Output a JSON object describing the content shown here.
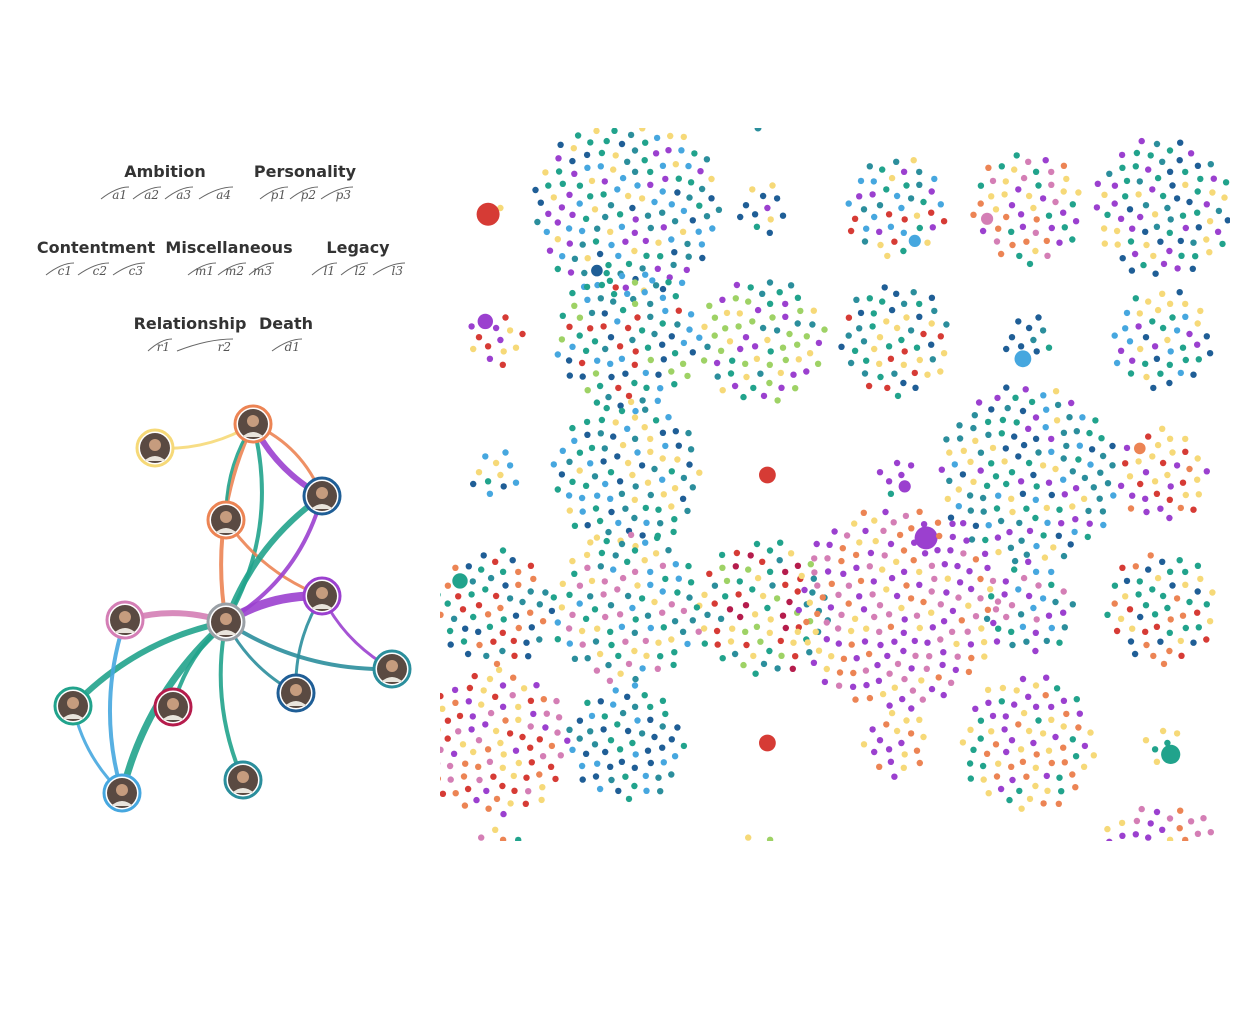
{
  "colors": {
    "red": "#d63b35",
    "teal": "#21a38c",
    "navy": "#1f5e96",
    "purple": "#9b40cf",
    "yellow": "#f6d978",
    "blue": "#46a7df",
    "pink": "#d47eb5",
    "orange": "#ec8454",
    "green": "#9ed265",
    "crimson": "#b51c4c",
    "sea": "#2b8e9c",
    "dark": "#333333"
  },
  "themes": [
    {
      "title": "Ambition",
      "motifs": [
        "a1",
        "a2",
        "a3",
        "a4"
      ]
    },
    {
      "title": "Personality",
      "motifs": [
        "p1",
        "p2",
        "p3"
      ]
    },
    {
      "title": "Contentment",
      "motifs": [
        "c1",
        "c2",
        "c3"
      ]
    },
    {
      "title": "Miscellaneous",
      "motifs": [
        "m1",
        "m2",
        "m3"
      ]
    },
    {
      "title": "Legacy",
      "motifs": [
        "l1",
        "l2",
        "l3"
      ]
    },
    {
      "title": "Relationship",
      "motifs": [
        "r1",
        "r2"
      ]
    },
    {
      "title": "Death",
      "motifs": [
        "d1"
      ]
    }
  ],
  "network": {
    "nodes": [
      {
        "id": "ensemble",
        "icon": "ensemble-photo-icon",
        "ring": "#f6d978"
      },
      {
        "id": "burr",
        "icon": "burr-portrait-icon",
        "ring": "#ec8454"
      },
      {
        "id": "washington",
        "icon": "washington-portrait-icon",
        "ring": "#1f5e96"
      },
      {
        "id": "mulligan",
        "icon": "mulligan-portrait-icon",
        "ring": "#ec8454"
      },
      {
        "id": "jefferson",
        "icon": "jefferson-portrait-icon",
        "ring": "#9b40cf"
      },
      {
        "id": "angelica",
        "icon": "angelica-portrait-icon",
        "ring": "#d47eb5"
      },
      {
        "id": "hamilton",
        "icon": "hamilton-portrait-icon",
        "ring": "#9aa0a6"
      },
      {
        "id": "laurens",
        "icon": "laurens-portrait-icon",
        "ring": "#2b8e9c"
      },
      {
        "id": "lee",
        "icon": "lee-portrait-icon",
        "ring": "#21a38c"
      },
      {
        "id": "peggy",
        "icon": "peggy-portrait-icon",
        "ring": "#b51c4c"
      },
      {
        "id": "seabury",
        "icon": "seabury-portrait-icon",
        "ring": "#1f5e96"
      },
      {
        "id": "philip",
        "icon": "philip-portrait-icon",
        "ring": "#2b8e9c"
      },
      {
        "id": "eliza",
        "icon": "eliza-portrait-icon",
        "ring": "#46a7df"
      }
    ],
    "links": [
      {
        "from": "ensemble",
        "to": "burr",
        "color": "#f6d978",
        "weight": 3
      },
      {
        "from": "burr",
        "to": "washington",
        "color": "#9b40cf",
        "weight": 6
      },
      {
        "from": "burr",
        "to": "washington",
        "color": "#ec8454",
        "weight": 3
      },
      {
        "from": "burr",
        "to": "hamilton",
        "color": "#ec8454",
        "weight": 4
      },
      {
        "from": "burr",
        "to": "hamilton",
        "color": "#21a38c",
        "weight": 4
      },
      {
        "from": "burr",
        "to": "mulligan",
        "color": "#21a38c",
        "weight": 3
      },
      {
        "from": "mulligan",
        "to": "jefferson",
        "color": "#ec8454",
        "weight": 3
      },
      {
        "from": "washington",
        "to": "hamilton",
        "color": "#21a38c",
        "weight": 6
      },
      {
        "from": "washington",
        "to": "hamilton",
        "color": "#9b40cf",
        "weight": 4
      },
      {
        "from": "jefferson",
        "to": "hamilton",
        "color": "#9b40cf",
        "weight": 9
      },
      {
        "from": "jefferson",
        "to": "laurens",
        "color": "#9b40cf",
        "weight": 3
      },
      {
        "from": "jefferson",
        "to": "seabury",
        "color": "#2b8e9c",
        "weight": 3
      },
      {
        "from": "hamilton",
        "to": "angelica",
        "color": "#d47eb5",
        "weight": 6
      },
      {
        "from": "hamilton",
        "to": "laurens",
        "color": "#2b8e9c",
        "weight": 4
      },
      {
        "from": "hamilton",
        "to": "lee",
        "color": "#21a38c",
        "weight": 6
      },
      {
        "from": "hamilton",
        "to": "peggy",
        "color": "#21a38c",
        "weight": 4
      },
      {
        "from": "hamilton",
        "to": "seabury",
        "color": "#2b8e9c",
        "weight": 3
      },
      {
        "from": "hamilton",
        "to": "philip",
        "color": "#21a38c",
        "weight": 4
      },
      {
        "from": "hamilton",
        "to": "eliza",
        "color": "#21a38c",
        "weight": 7
      },
      {
        "from": "angelica",
        "to": "eliza",
        "color": "#46a7df",
        "weight": 4
      },
      {
        "from": "lee",
        "to": "eliza",
        "color": "#46a7df",
        "weight": 3
      }
    ]
  },
  "clusters": {
    "rows": [
      [
        {
          "count": 2,
          "big": {
            "color": "#d63b35",
            "size": 3
          },
          "palette": [
            "#f6d978"
          ]
        },
        {
          "count": 150,
          "big": {
            "color": "#1f5e96",
            "size": 1.5
          },
          "palette": [
            "#21a38c",
            "#1f5e96",
            "#9b40cf",
            "#f6d978",
            "#2b8e9c",
            "#46a7df"
          ]
        },
        {
          "count": 12,
          "palette": [
            "#9b40cf",
            "#1f5e96",
            "#21a38c",
            "#f6d978"
          ]
        },
        {
          "count": 45,
          "big": {
            "color": "#46a7df",
            "size": 1.6
          },
          "palette": [
            "#2b8e9c",
            "#46a7df",
            "#d63b35",
            "#9b40cf",
            "#21a38c",
            "#f6d978"
          ]
        },
        {
          "count": 55,
          "big": {
            "color": "#d47eb5",
            "size": 1.6
          },
          "palette": [
            "#d47eb5",
            "#f6d978",
            "#21a38c",
            "#9b40cf",
            "#ec8454"
          ]
        },
        {
          "count": 85,
          "palette": [
            "#21a38c",
            "#2b8e9c",
            "#1f5e96",
            "#9b40cf",
            "#f6d978"
          ]
        }
      ],
      [
        {
          "count": 14,
          "big": {
            "color": "#9b40cf",
            "size": 2
          },
          "palette": [
            "#9b40cf",
            "#f6d978",
            "#d63b35"
          ]
        },
        {
          "count": 90,
          "palette": [
            "#21a38c",
            "#2b8e9c",
            "#1f5e96",
            "#9ed265",
            "#46a7df",
            "#d63b35"
          ]
        },
        {
          "count": 70,
          "palette": [
            "#9b40cf",
            "#f6d978",
            "#21a38c",
            "#9ed265",
            "#2b8e9c"
          ]
        },
        {
          "count": 55,
          "palette": [
            "#1f5e96",
            "#21a38c",
            "#2b8e9c",
            "#f6d978",
            "#d63b35"
          ]
        },
        {
          "count": 11,
          "big": {
            "color": "#46a7df",
            "size": 2.2
          },
          "palette": [
            "#2b8e9c",
            "#1f5e96",
            "#21a38c"
          ]
        },
        {
          "count": 45,
          "palette": [
            "#1f5e96",
            "#f6d978",
            "#21a38c",
            "#9b40cf",
            "#46a7df"
          ]
        }
      ],
      [
        {
          "count": 11,
          "palette": [
            "#1f5e96",
            "#f6d978",
            "#21a38c",
            "#46a7df"
          ]
        },
        {
          "count": 95,
          "palette": [
            "#21a38c",
            "#f6d978",
            "#2b8e9c",
            "#1f5e96",
            "#46a7df"
          ]
        },
        {
          "count": 1,
          "big": {
            "color": "#d63b35",
            "size": 2.2
          },
          "palette": [
            "#d63b35"
          ]
        },
        {
          "count": 7,
          "big": {
            "color": "#9b40cf",
            "size": 1.6
          },
          "palette": [
            "#9b40cf",
            "#21a38c"
          ]
        },
        {
          "count": 140,
          "palette": [
            "#21a38c",
            "#9b40cf",
            "#1f5e96",
            "#2b8e9c",
            "#f6d978",
            "#46a7df"
          ]
        },
        {
          "count": 38,
          "big": {
            "color": "#ec8454",
            "size": 1.5
          },
          "palette": [
            "#ec8454",
            "#f6d978",
            "#9b40cf",
            "#d63b35"
          ]
        }
      ],
      [
        {
          "count": 60,
          "big": {
            "color": "#21a38c",
            "size": 2
          },
          "palette": [
            "#1f5e96",
            "#ec8454",
            "#2b8e9c",
            "#21a38c",
            "#d63b35"
          ]
        },
        {
          "count": 100,
          "palette": [
            "#21a38c",
            "#46a7df",
            "#d47eb5",
            "#2b8e9c",
            "#f6d978"
          ]
        },
        {
          "count": 80,
          "palette": [
            "#d63b35",
            "#b51c4c",
            "#21a38c",
            "#f6d978",
            "#2b8e9c",
            "#9ed265"
          ]
        },
        {
          "count": 180,
          "big": {
            "color": "#9b40cf",
            "size": 3
          },
          "palette": [
            "#9b40cf",
            "#f6d978",
            "#9b40cf",
            "#ec8454",
            "#d47eb5"
          ]
        },
        {
          "count": 38,
          "palette": [
            "#2b8e9c",
            "#46a7df",
            "#9b40cf",
            "#d47eb5",
            "#21a38c"
          ]
        },
        {
          "count": 55,
          "palette": [
            "#ec8454",
            "#21a38c",
            "#1f5e96",
            "#f6d978",
            "#d63b35"
          ]
        }
      ],
      [
        {
          "count": 95,
          "palette": [
            "#ec8454",
            "#f6d978",
            "#9b40cf",
            "#d47eb5",
            "#d63b35"
          ]
        },
        {
          "count": 60,
          "palette": [
            "#1f5e96",
            "#21a38c",
            "#2b8e9c",
            "#46a7df"
          ]
        },
        {
          "count": 1,
          "big": {
            "color": "#d63b35",
            "size": 2.2
          },
          "palette": [
            "#d63b35"
          ]
        },
        {
          "count": 20,
          "palette": [
            "#ec8454",
            "#9b40cf",
            "#f6d978"
          ]
        },
        {
          "count": 80,
          "palette": [
            "#ec8454",
            "#9b40cf",
            "#21a38c",
            "#f6d978"
          ]
        },
        {
          "count": 7,
          "big": {
            "color": "#21a38c",
            "size": 2.5
          },
          "palette": [
            "#21a38c",
            "#f6d978"
          ]
        }
      ],
      [
        {
          "count": 40,
          "palette": [
            "#f6d978",
            "#21a38c",
            "#ec8454",
            "#d47eb5"
          ]
        },
        {
          "count": 0,
          "palette": []
        },
        {
          "count": 30,
          "palette": [
            "#9ed265",
            "#f6d978"
          ]
        },
        {
          "count": 0,
          "palette": []
        },
        {
          "count": 0,
          "palette": []
        },
        {
          "count": 90,
          "palette": [
            "#f6d978",
            "#ec8454",
            "#9b40cf",
            "#d47eb5"
          ]
        }
      ]
    ]
  }
}
